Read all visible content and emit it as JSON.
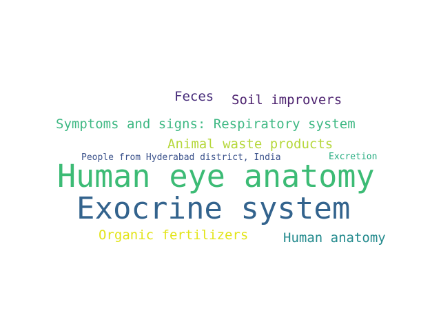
{
  "words": [
    {
      "text": "Feces",
      "color": "#472c7a"
    },
    {
      "text": "Soil improvers",
      "color": "#4a1f6d"
    },
    {
      "text": "Symptoms and signs: Respiratory system",
      "color": "#3eb883"
    },
    {
      "text": "Animal waste products",
      "color": "#b5d73a"
    },
    {
      "text": "People from Hyderabad district, India",
      "color": "#3b528b"
    },
    {
      "text": "Excretion",
      "color": "#27ad81"
    },
    {
      "text": "Human eye anatomy",
      "color": "#3cbb75"
    },
    {
      "text": "Exocrine system",
      "color": "#33638d"
    },
    {
      "text": "Organic fertilizers",
      "color": "#e2e418"
    },
    {
      "text": "Human anatomy",
      "color": "#238a8d"
    }
  ]
}
